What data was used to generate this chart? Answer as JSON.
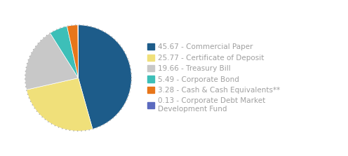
{
  "slices": [
    45.67,
    25.77,
    19.66,
    5.49,
    3.28,
    0.13
  ],
  "colors": [
    "#1d5c8a",
    "#f0e07a",
    "#c8c8c8",
    "#3dbfb8",
    "#e8761a",
    "#5b6abf"
  ],
  "labels": [
    "45.67 - Commercial Paper",
    "25.77 - Certificate of Deposit",
    "19.66 - Treasury Bill",
    "5.49 - Corporate Bond",
    "3.28 - Cash & Cash Equivalents**",
    "0.13 - Corporate Debt Market\nDevelopment Fund"
  ],
  "startangle": 90,
  "background_color": "#ffffff",
  "legend_fontsize": 7.5,
  "text_color": "#a0a0a0",
  "figsize": [
    4.96,
    2.23
  ],
  "dpi": 100
}
